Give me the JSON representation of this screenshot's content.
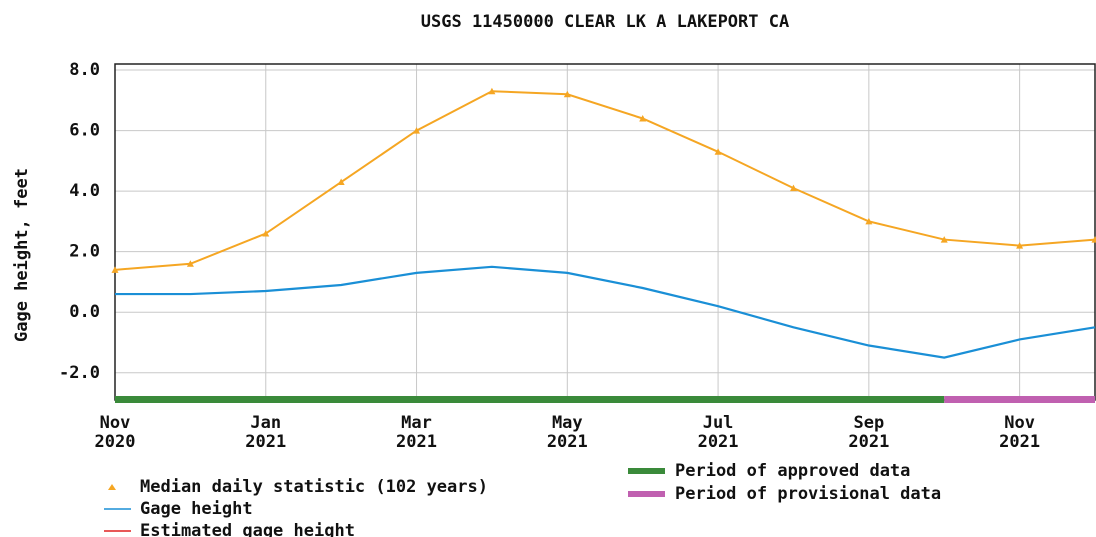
{
  "chart_data": {
    "type": "line",
    "title": "USGS 11450000 CLEAR LK A LAKEPORT CA",
    "y_label": "Gage height, feet",
    "x": [
      "2020-11",
      "2020-12",
      "2021-01",
      "2021-02",
      "2021-03",
      "2021-04",
      "2021-05",
      "2021-06",
      "2021-07",
      "2021-08",
      "2021-09",
      "2021-10",
      "2021-11",
      "2021-12"
    ],
    "series": [
      {
        "name": "Median daily statistic (102 years)",
        "color": "#f5a623",
        "marker": "triangle",
        "values": [
          1.4,
          1.6,
          2.6,
          4.3,
          6.0,
          7.3,
          7.2,
          6.4,
          5.3,
          4.1,
          3.0,
          2.4,
          2.2,
          2.4
        ]
      },
      {
        "name": "Gage height",
        "color": "#1a8fd6",
        "values": [
          0.6,
          0.6,
          0.7,
          0.9,
          1.3,
          1.5,
          1.3,
          0.8,
          0.2,
          -0.5,
          -1.1,
          -1.5,
          -0.9,
          -0.5
        ]
      },
      {
        "name": "Estimated gage height",
        "color": "#e02020",
        "values": [
          null,
          null,
          null,
          null,
          null,
          null,
          null,
          null,
          null,
          null,
          null,
          null,
          null,
          null
        ]
      }
    ],
    "periods": [
      {
        "name": "Period of approved data",
        "color": "#3a8a3a",
        "start": "2020-11",
        "end": "2021-10"
      },
      {
        "name": "Period of provisional data",
        "color": "#c060b0",
        "start": "2021-10",
        "end": "2021-12"
      }
    ],
    "xlim": [
      "2020-11",
      "2021-12"
    ],
    "xticks": [
      {
        "value": "2020-11",
        "label": "Nov\n2020"
      },
      {
        "value": "2021-01",
        "label": "Jan\n2021"
      },
      {
        "value": "2021-03",
        "label": "Mar\n2021"
      },
      {
        "value": "2021-05",
        "label": "May\n2021"
      },
      {
        "value": "2021-07",
        "label": "Jul\n2021"
      },
      {
        "value": "2021-09",
        "label": "Sep\n2021"
      },
      {
        "value": "2021-11",
        "label": "Nov\n2021"
      }
    ],
    "ylim": [
      -2.9,
      8.2
    ],
    "yticks": [
      {
        "value": -2,
        "label": "-2.0"
      },
      {
        "value": 0,
        "label": "0.0"
      },
      {
        "value": 2,
        "label": "2.0"
      },
      {
        "value": 4,
        "label": "4.0"
      },
      {
        "value": 6,
        "label": "6.0"
      },
      {
        "value": 8,
        "label": "8.0"
      }
    ],
    "grid": true
  }
}
